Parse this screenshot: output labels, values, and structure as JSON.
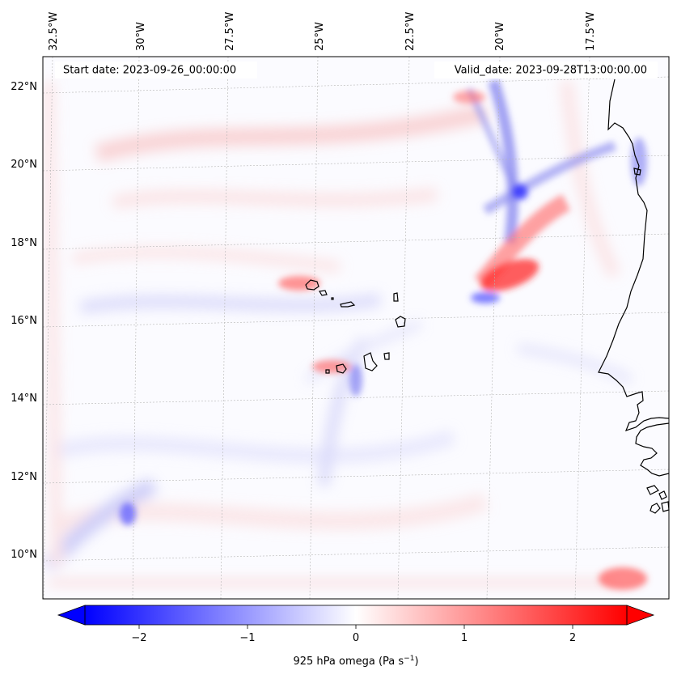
{
  "header": {
    "start_date": "Start date: 2023-09-26_00:00:00",
    "valid_date": "Valid_date: 2023-09-28T13:00:00.00"
  },
  "map": {
    "lon_ticks": [
      "32.5°W",
      "30°W",
      "27.5°W",
      "25°W",
      "22.5°W",
      "20°W",
      "17.5°W"
    ],
    "lat_ticks": [
      "22°N",
      "20°N",
      "18°N",
      "16°N",
      "14°N",
      "12°N",
      "10°N"
    ],
    "gridlines": true,
    "coastline_color": "#000000"
  },
  "colorbar": {
    "cmap": "bwr",
    "min_color": "#0000ff",
    "mid_color": "#ffffff",
    "max_color": "#ff0000",
    "range": [
      -2.5,
      2.5
    ],
    "extend": "both",
    "ticks": [
      "−2",
      "−1",
      "0",
      "1",
      "2"
    ],
    "label_main": "925 hPa omega (Pa s",
    "label_sup": "−1",
    "label_close": ")"
  }
}
